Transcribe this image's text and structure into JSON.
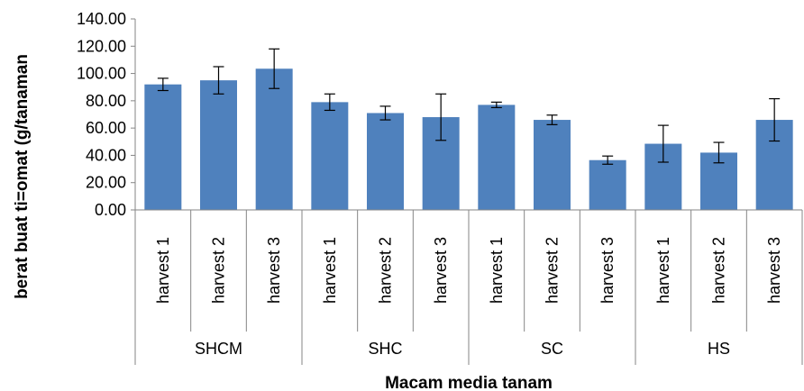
{
  "chart_data": {
    "type": "bar",
    "title": "",
    "xlabel": "Macam media tanam",
    "ylabel": "berat buat ti=omat (g/tanaman",
    "ylim": [
      0,
      140
    ],
    "yticks": [
      "0.00",
      "20.00",
      "40.00",
      "60.00",
      "80.00",
      "100.00",
      "120.00",
      "140.00"
    ],
    "groups": [
      "SHCM",
      "SHC",
      "SC",
      "HS"
    ],
    "categories": [
      "harvest 1",
      "harvest 2",
      "harvest 3",
      "harvest 1",
      "harvest 2",
      "harvest 3",
      "harvest 1",
      "harvest 2",
      "harvest 3",
      "harvest 1",
      "harvest 2",
      "harvest 3"
    ],
    "values": [
      92,
      95,
      103.5,
      79,
      71,
      68,
      77,
      66,
      36.5,
      48.5,
      42,
      66
    ],
    "error": [
      4.5,
      10,
      14.5,
      6,
      5,
      17,
      2,
      3.5,
      3,
      13.5,
      7.5,
      15.5
    ],
    "bar_color": "#4f81bd",
    "legend": "none",
    "grid": false
  }
}
